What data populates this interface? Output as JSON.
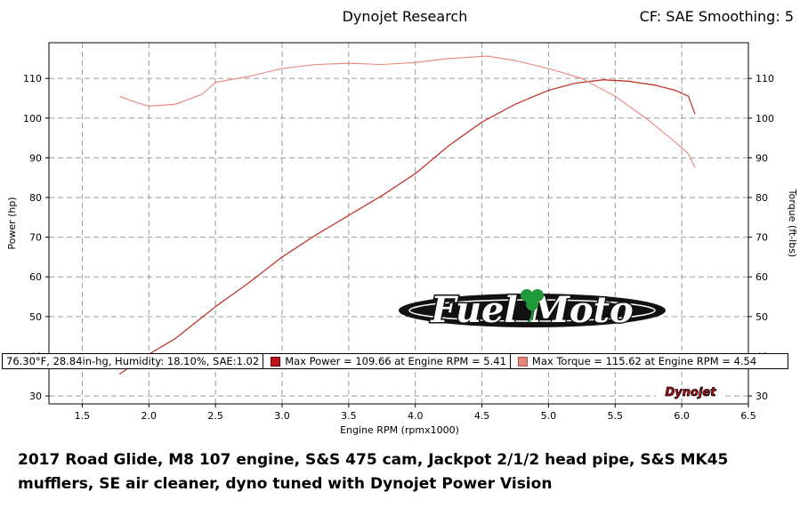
{
  "header": {
    "title": "Dynojet Research",
    "cf_text": "CF: SAE Smoothing: 5"
  },
  "info_bar": {
    "conditions": "76.30°F, 28.84in-hg, Humidity: 18.10%, SAE:1.02",
    "max_power": "Max Power = 109.66 at Engine RPM = 5.41",
    "max_torque": "Max Torque = 115.62 at Engine RPM = 4.54"
  },
  "logo": {
    "text": "Fuel Moto",
    "dyno_badge": "Dynojet"
  },
  "caption": "2017 Road Glide, M8 107 engine, S&S 475 cam, Jackpot 2/1/2 head pipe, S&S MK45 mufflers, SE air cleaner, dyno tuned with Dynojet Power Vision",
  "colors": {
    "power": "#c0392b",
    "torque": "#e8857a",
    "grid": "#9a9a9a"
  },
  "chart_data": {
    "type": "line",
    "xlabel": "Engine RPM (rpmx1000)",
    "ylabel_left": "Power (hp)",
    "ylabel_right": "Torque (ft-lbs)",
    "xlim": [
      1.25,
      6.5
    ],
    "ylim": [
      28,
      119
    ],
    "x_ticks": [
      "1.5",
      "2.0",
      "2.5",
      "3.0",
      "3.5",
      "4.0",
      "4.5",
      "5.0",
      "5.5",
      "6.0",
      "6.5"
    ],
    "y_ticks": [
      "30",
      "40",
      "50",
      "60",
      "70",
      "80",
      "90",
      "100",
      "110"
    ],
    "grid": true,
    "series": [
      {
        "name": "Power",
        "x": [
          1.78,
          2.0,
          2.2,
          2.5,
          2.75,
          3.0,
          3.25,
          3.5,
          3.75,
          4.0,
          4.25,
          4.5,
          4.75,
          5.0,
          5.2,
          5.41,
          5.6,
          5.8,
          5.95,
          6.05,
          6.1
        ],
        "y": [
          35.5,
          40.5,
          44.5,
          52.5,
          58.5,
          65.0,
          70.5,
          75.5,
          80.5,
          86.0,
          93.0,
          99.0,
          103.5,
          107.0,
          108.8,
          109.66,
          109.3,
          108.3,
          107.0,
          105.5,
          101.0
        ]
      },
      {
        "name": "Torque",
        "x": [
          1.78,
          1.9,
          2.0,
          2.2,
          2.4,
          2.5,
          2.75,
          3.0,
          3.25,
          3.5,
          3.75,
          4.0,
          4.25,
          4.54,
          4.75,
          5.0,
          5.25,
          5.5,
          5.75,
          5.95,
          6.05,
          6.1
        ],
        "y": [
          105.5,
          104.0,
          103.0,
          103.5,
          106.0,
          109.0,
          110.5,
          112.5,
          113.5,
          113.8,
          113.5,
          114.0,
          115.0,
          115.62,
          114.5,
          112.5,
          110.0,
          105.5,
          99.5,
          94.0,
          91.0,
          87.5
        ]
      }
    ],
    "max_power": {
      "value": 109.66,
      "rpm": 5.41
    },
    "max_torque": {
      "value": 115.62,
      "rpm": 4.54
    }
  }
}
